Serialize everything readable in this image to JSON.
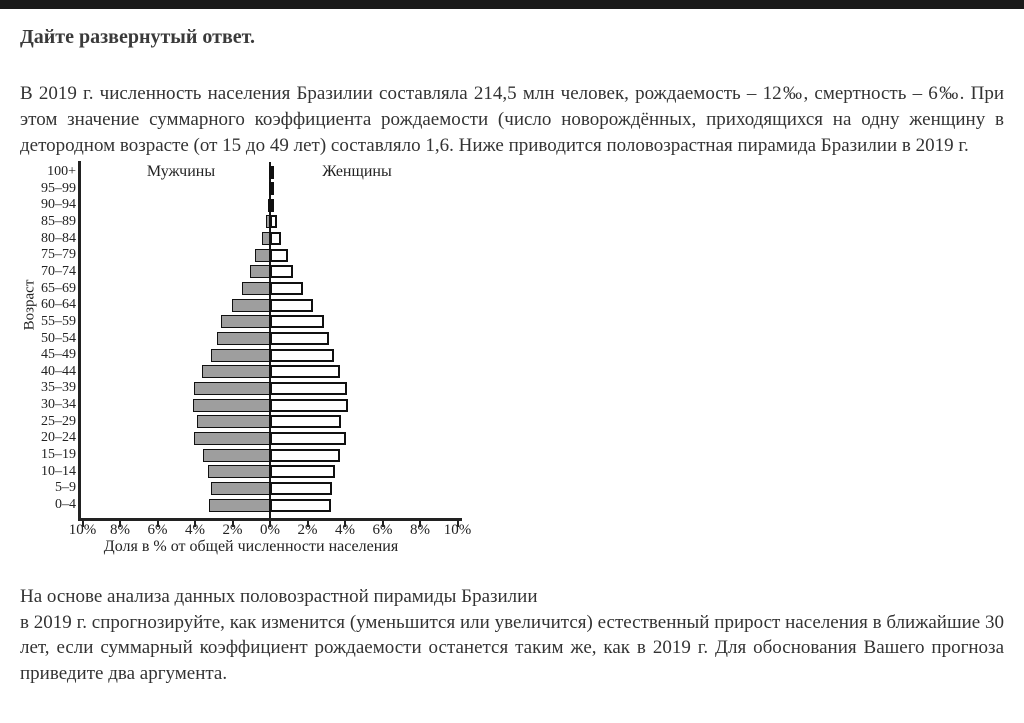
{
  "page": {
    "title": "Дайте развернутый ответ.",
    "intro": "В 2019 г. численность населения Бразилии составляла 214,5 млн человек, рождаемость – 12‰, смертность – 6‰. При этом значение суммарного коэффициента рождаемости (число новорождённых, приходящихся на одну женщину в детородном возрасте (от 15 до 49 лет) составляло 1,6. Ниже приводится половозрастная пирамида Бразилии в 2019 г.",
    "outro_line1": "На основе анализа данных половозрастной пирамиды Бразилии",
    "outro_rest": "в 2019 г. спрогнозируйте, как изменится (уменьшится или увеличится) естественный прирост населения в ближайшие 30 лет, если суммарный коэффициент рождаемости останется таким же, как в 2019 г. Для обоснования Вашего прогноза приведите два аргумента."
  },
  "chart_data": {
    "type": "bar",
    "subtype": "population-pyramid",
    "left_label": "Мужчины",
    "right_label": "Женщины",
    "ylabel": "Возраст",
    "xlabel": "Доля в % от общей численности населения",
    "categories_top_down": [
      "100+",
      "95–99",
      "90–94",
      "85–89",
      "80–84",
      "75–79",
      "70–74",
      "65–69",
      "60–64",
      "55–59",
      "50–54",
      "45–49",
      "40–44",
      "35–39",
      "30–34",
      "25–29",
      "20–24",
      "15–19",
      "10–14",
      "5–9",
      "0–4"
    ],
    "series": [
      {
        "name": "Мужчины",
        "side": "left",
        "values_pct_top_down": [
          0.02,
          0.05,
          0.1,
          0.2,
          0.45,
          0.8,
          1.05,
          1.5,
          2.05,
          2.6,
          2.85,
          3.15,
          3.65,
          4.05,
          4.1,
          3.9,
          4.05,
          3.55,
          3.3,
          3.15,
          3.25
        ]
      },
      {
        "name": "Женщины",
        "side": "right",
        "values_pct_top_down": [
          0.03,
          0.08,
          0.15,
          0.35,
          0.6,
          0.95,
          1.25,
          1.75,
          2.3,
          2.9,
          3.15,
          3.4,
          3.75,
          4.1,
          4.15,
          3.8,
          4.05,
          3.75,
          3.45,
          3.3,
          3.25
        ]
      }
    ],
    "x_ticks_pct": [
      -10,
      -8,
      -6,
      -4,
      -2,
      0,
      2,
      4,
      6,
      8,
      10
    ],
    "x_tick_labels": [
      "10%",
      "8%",
      "6%",
      "4%",
      "2%",
      "0%",
      "2%",
      "4%",
      "6%",
      "8%",
      "10%"
    ],
    "xlim_pct": [
      -10,
      10
    ],
    "grid": false,
    "legend_position": "top-inside"
  },
  "colors": {
    "male_fill": "#9e9e9e",
    "female_fill": "#ffffff",
    "bar_border": "#101010",
    "axis": "#222222",
    "header_bar": "#1a1a1a",
    "text": "#333333"
  }
}
